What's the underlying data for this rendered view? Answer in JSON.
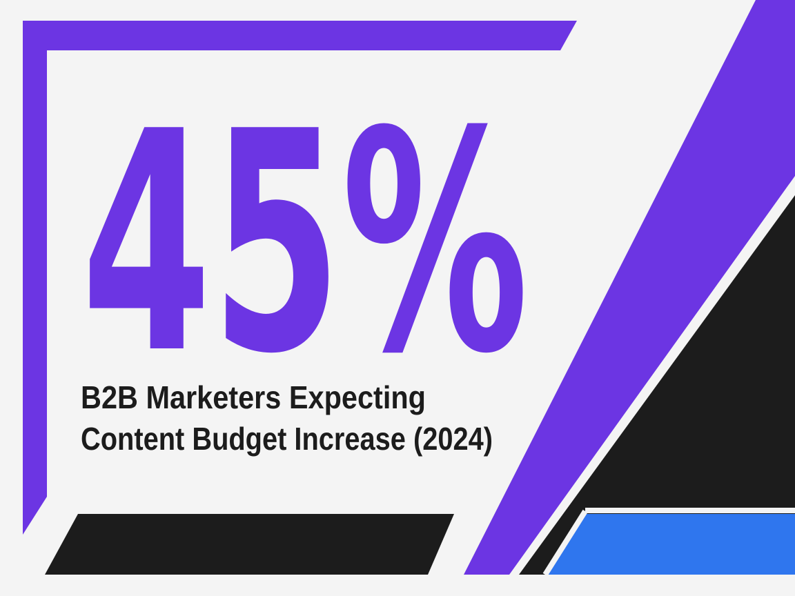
{
  "headline": "45%",
  "caption": [
    "B2B Marketers Expecting",
    "Content Budget Increase (2024)"
  ]
}
